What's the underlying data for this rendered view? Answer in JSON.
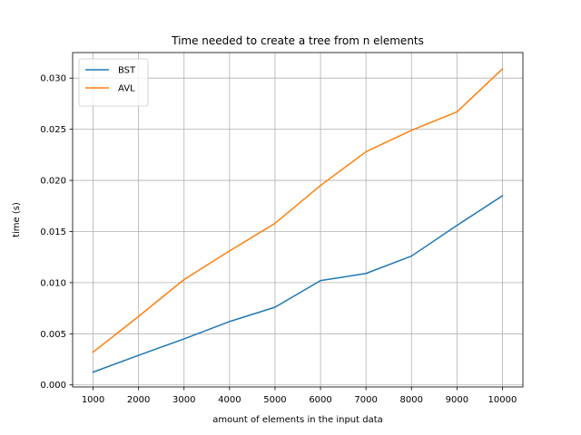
{
  "chart_data": {
    "type": "line",
    "title": "Time needed to create a tree from n elements",
    "xlabel": "amount of elements in the input data",
    "ylabel": "time (s)",
    "x": [
      1000,
      2000,
      3000,
      4000,
      5000,
      6000,
      7000,
      8000,
      9000,
      10000
    ],
    "x_tick_labels": [
      "1000",
      "2000",
      "3000",
      "4000",
      "5000",
      "6000",
      "7000",
      "8000",
      "9000",
      "10000"
    ],
    "y_ticks": [
      0.0,
      0.005,
      0.01,
      0.015,
      0.02,
      0.025,
      0.03
    ],
    "y_tick_labels": [
      "0.000",
      "0.005",
      "0.010",
      "0.015",
      "0.020",
      "0.025",
      "0.030"
    ],
    "xlim": [
      550,
      10450
    ],
    "ylim": [
      -0.0002,
      0.0325
    ],
    "grid": true,
    "legend_position": "top-left",
    "series": [
      {
        "name": "BST",
        "color": "#1f77b4",
        "values": [
          0.00125,
          0.0029,
          0.0045,
          0.0062,
          0.0076,
          0.0102,
          0.0109,
          0.0126,
          0.0156,
          0.0185
        ]
      },
      {
        "name": "AVL",
        "color": "#ff7f0e",
        "values": [
          0.0032,
          0.0067,
          0.0103,
          0.0131,
          0.0158,
          0.0195,
          0.0228,
          0.0249,
          0.0267,
          0.0309
        ]
      }
    ]
  }
}
